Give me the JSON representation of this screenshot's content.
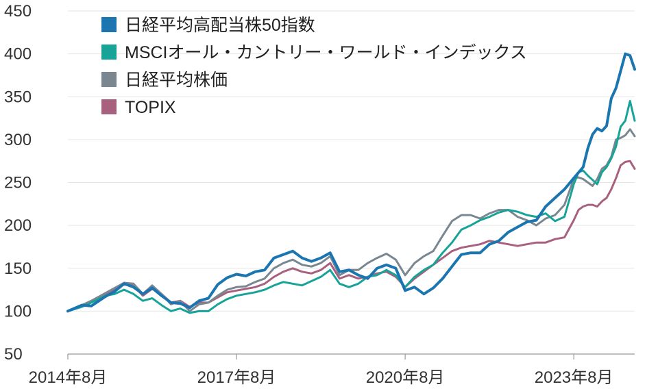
{
  "chart_data": {
    "type": "line",
    "title": "",
    "xlabel": "",
    "ylabel": "",
    "ylim": [
      50,
      450
    ],
    "yticks": [
      50,
      100,
      150,
      200,
      250,
      300,
      350,
      400,
      450
    ],
    "xlim": [
      0,
      121
    ],
    "xticks": [
      {
        "month_index": 0,
        "label": "2014年8月"
      },
      {
        "month_index": 36,
        "label": "2017年8月"
      },
      {
        "month_index": 72,
        "label": "2020年8月"
      },
      {
        "month_index": 108,
        "label": "2023年8月"
      }
    ],
    "grid": "horizontal",
    "legend_position": "top-left",
    "series": [
      {
        "name": "日経平均高配当株50指数",
        "color": "#1a75b0",
        "points": [
          [
            0,
            100
          ],
          [
            3,
            107
          ],
          [
            5,
            106
          ],
          [
            8,
            117
          ],
          [
            10,
            123
          ],
          [
            12,
            132
          ],
          [
            14,
            128
          ],
          [
            16,
            120
          ],
          [
            18,
            127
          ],
          [
            20,
            118
          ],
          [
            22,
            110
          ],
          [
            24,
            109
          ],
          [
            26,
            104
          ],
          [
            28,
            112
          ],
          [
            30,
            115
          ],
          [
            32,
            131
          ],
          [
            34,
            139
          ],
          [
            36,
            143
          ],
          [
            38,
            141
          ],
          [
            40,
            146
          ],
          [
            42,
            148
          ],
          [
            44,
            162
          ],
          [
            46,
            166
          ],
          [
            48,
            170
          ],
          [
            50,
            162
          ],
          [
            52,
            158
          ],
          [
            54,
            162
          ],
          [
            56,
            168
          ],
          [
            58,
            146
          ],
          [
            60,
            148
          ],
          [
            62,
            142
          ],
          [
            64,
            138
          ],
          [
            66,
            150
          ],
          [
            68,
            154
          ],
          [
            70,
            150
          ],
          [
            72,
            124
          ],
          [
            74,
            128
          ],
          [
            76,
            120
          ],
          [
            78,
            127
          ],
          [
            80,
            138
          ],
          [
            82,
            152
          ],
          [
            84,
            166
          ],
          [
            86,
            168
          ],
          [
            88,
            168
          ],
          [
            90,
            178
          ],
          [
            92,
            182
          ],
          [
            94,
            192
          ],
          [
            96,
            198
          ],
          [
            98,
            204
          ],
          [
            100,
            206
          ],
          [
            102,
            222
          ],
          [
            104,
            232
          ],
          [
            106,
            242
          ],
          [
            108,
            255
          ],
          [
            110,
            268
          ],
          [
            111,
            290
          ],
          [
            112,
            306
          ],
          [
            113,
            313
          ],
          [
            114,
            310
          ],
          [
            115,
            316
          ],
          [
            116,
            348
          ],
          [
            117,
            360
          ],
          [
            118,
            380
          ],
          [
            119,
            400
          ],
          [
            120,
            398
          ],
          [
            121,
            382
          ]
        ]
      },
      {
        "name": "MSCIオール・カントリー・ワールド・インデックス",
        "color": "#17a398",
        "points": [
          [
            0,
            100
          ],
          [
            3,
            105
          ],
          [
            5,
            110
          ],
          [
            8,
            118
          ],
          [
            10,
            120
          ],
          [
            12,
            125
          ],
          [
            14,
            120
          ],
          [
            16,
            112
          ],
          [
            18,
            115
          ],
          [
            20,
            107
          ],
          [
            22,
            100
          ],
          [
            24,
            103
          ],
          [
            26,
            98
          ],
          [
            28,
            100
          ],
          [
            30,
            100
          ],
          [
            32,
            108
          ],
          [
            34,
            114
          ],
          [
            36,
            118
          ],
          [
            38,
            120
          ],
          [
            40,
            122
          ],
          [
            42,
            125
          ],
          [
            44,
            130
          ],
          [
            46,
            134
          ],
          [
            48,
            132
          ],
          [
            50,
            130
          ],
          [
            52,
            135
          ],
          [
            54,
            140
          ],
          [
            56,
            148
          ],
          [
            58,
            132
          ],
          [
            60,
            128
          ],
          [
            62,
            132
          ],
          [
            64,
            140
          ],
          [
            66,
            142
          ],
          [
            68,
            148
          ],
          [
            70,
            142
          ],
          [
            72,
            128
          ],
          [
            74,
            140
          ],
          [
            76,
            148
          ],
          [
            78,
            154
          ],
          [
            80,
            168
          ],
          [
            82,
            180
          ],
          [
            84,
            195
          ],
          [
            86,
            200
          ],
          [
            88,
            206
          ],
          [
            90,
            210
          ],
          [
            92,
            215
          ],
          [
            94,
            218
          ],
          [
            96,
            216
          ],
          [
            98,
            212
          ],
          [
            100,
            210
          ],
          [
            102,
            214
          ],
          [
            104,
            205
          ],
          [
            106,
            210
          ],
          [
            108,
            248
          ],
          [
            109,
            262
          ],
          [
            110,
            264
          ],
          [
            111,
            258
          ],
          [
            112,
            253
          ],
          [
            113,
            248
          ],
          [
            114,
            262
          ],
          [
            115,
            268
          ],
          [
            116,
            278
          ],
          [
            117,
            292
          ],
          [
            118,
            315
          ],
          [
            119,
            322
          ],
          [
            120,
            345
          ],
          [
            121,
            322
          ]
        ]
      },
      {
        "name": "日経平均株価",
        "color": "#7a8791",
        "points": [
          [
            0,
            100
          ],
          [
            3,
            107
          ],
          [
            5,
            112
          ],
          [
            8,
            121
          ],
          [
            10,
            127
          ],
          [
            12,
            133
          ],
          [
            14,
            132
          ],
          [
            16,
            120
          ],
          [
            18,
            130
          ],
          [
            20,
            120
          ],
          [
            22,
            108
          ],
          [
            24,
            112
          ],
          [
            26,
            100
          ],
          [
            28,
            108
          ],
          [
            30,
            110
          ],
          [
            32,
            118
          ],
          [
            34,
            125
          ],
          [
            36,
            128
          ],
          [
            38,
            129
          ],
          [
            40,
            134
          ],
          [
            42,
            138
          ],
          [
            44,
            150
          ],
          [
            46,
            156
          ],
          [
            48,
            160
          ],
          [
            50,
            154
          ],
          [
            52,
            152
          ],
          [
            54,
            156
          ],
          [
            56,
            164
          ],
          [
            58,
            142
          ],
          [
            60,
            148
          ],
          [
            62,
            148
          ],
          [
            64,
            156
          ],
          [
            66,
            162
          ],
          [
            68,
            167
          ],
          [
            70,
            160
          ],
          [
            72,
            142
          ],
          [
            74,
            156
          ],
          [
            76,
            164
          ],
          [
            78,
            170
          ],
          [
            80,
            188
          ],
          [
            82,
            205
          ],
          [
            84,
            212
          ],
          [
            86,
            212
          ],
          [
            88,
            208
          ],
          [
            90,
            214
          ],
          [
            92,
            218
          ],
          [
            94,
            218
          ],
          [
            96,
            210
          ],
          [
            98,
            206
          ],
          [
            100,
            200
          ],
          [
            102,
            208
          ],
          [
            104,
            212
          ],
          [
            106,
            224
          ],
          [
            108,
            254
          ],
          [
            109,
            256
          ],
          [
            110,
            254
          ],
          [
            111,
            250
          ],
          [
            112,
            246
          ],
          [
            113,
            254
          ],
          [
            114,
            266
          ],
          [
            115,
            270
          ],
          [
            116,
            280
          ],
          [
            117,
            300
          ],
          [
            118,
            302
          ],
          [
            119,
            305
          ],
          [
            120,
            312
          ],
          [
            121,
            304
          ]
        ]
      },
      {
        "name": "TOPIX",
        "color": "#a8607f",
        "points": [
          [
            0,
            100
          ],
          [
            3,
            107
          ],
          [
            5,
            111
          ],
          [
            8,
            119
          ],
          [
            10,
            125
          ],
          [
            12,
            131
          ],
          [
            14,
            130
          ],
          [
            16,
            118
          ],
          [
            18,
            126
          ],
          [
            20,
            120
          ],
          [
            22,
            110
          ],
          [
            24,
            112
          ],
          [
            26,
            105
          ],
          [
            28,
            110
          ],
          [
            30,
            110
          ],
          [
            32,
            116
          ],
          [
            34,
            122
          ],
          [
            36,
            124
          ],
          [
            38,
            126
          ],
          [
            40,
            128
          ],
          [
            42,
            132
          ],
          [
            44,
            140
          ],
          [
            46,
            146
          ],
          [
            48,
            150
          ],
          [
            50,
            146
          ],
          [
            52,
            144
          ],
          [
            54,
            148
          ],
          [
            56,
            156
          ],
          [
            58,
            138
          ],
          [
            60,
            142
          ],
          [
            62,
            138
          ],
          [
            64,
            140
          ],
          [
            66,
            144
          ],
          [
            68,
            146
          ],
          [
            70,
            140
          ],
          [
            72,
            128
          ],
          [
            74,
            138
          ],
          [
            76,
            146
          ],
          [
            78,
            154
          ],
          [
            80,
            162
          ],
          [
            82,
            170
          ],
          [
            84,
            174
          ],
          [
            86,
            176
          ],
          [
            88,
            178
          ],
          [
            90,
            182
          ],
          [
            92,
            180
          ],
          [
            94,
            178
          ],
          [
            96,
            176
          ],
          [
            98,
            178
          ],
          [
            100,
            180
          ],
          [
            102,
            180
          ],
          [
            104,
            184
          ],
          [
            106,
            186
          ],
          [
            108,
            206
          ],
          [
            109,
            218
          ],
          [
            110,
            222
          ],
          [
            111,
            224
          ],
          [
            112,
            224
          ],
          [
            113,
            222
          ],
          [
            114,
            228
          ],
          [
            115,
            232
          ],
          [
            116,
            242
          ],
          [
            117,
            255
          ],
          [
            118,
            270
          ],
          [
            119,
            274
          ],
          [
            120,
            275
          ],
          [
            121,
            266
          ]
        ]
      }
    ]
  }
}
